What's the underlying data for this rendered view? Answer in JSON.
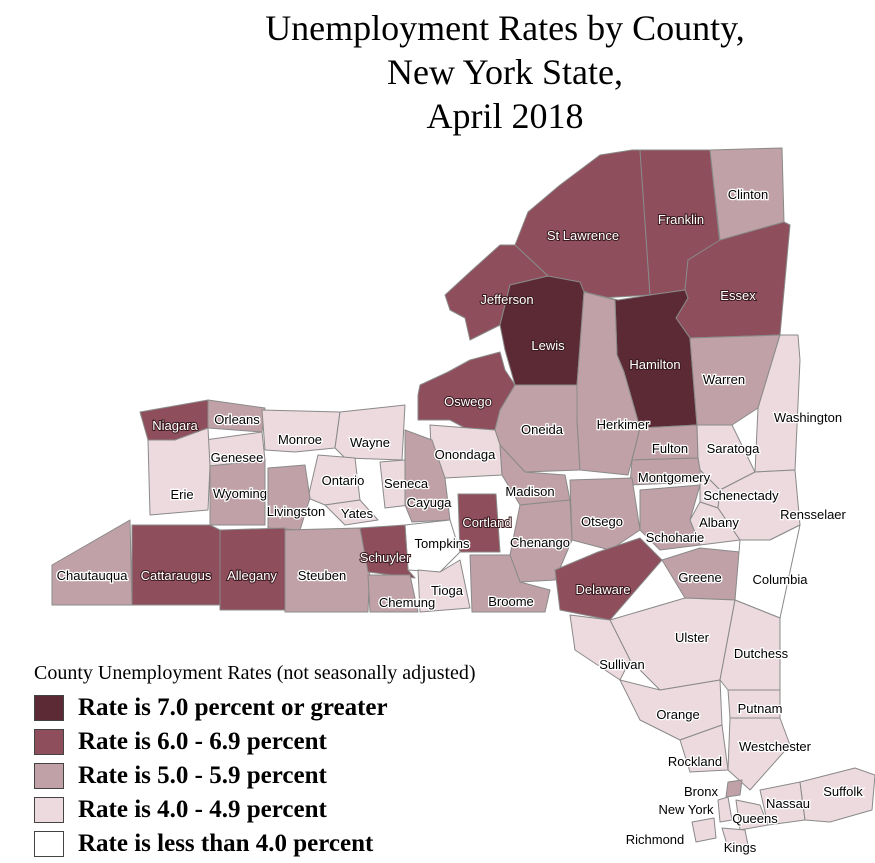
{
  "title": {
    "line1": "Unemployment Rates by County,",
    "line2": "New York State,",
    "line3": "April 2018"
  },
  "legend": {
    "title": "County Unemployment Rates (not seasonally adjusted)",
    "items": [
      {
        "label": "Rate is 7.0 percent or greater",
        "color": "#5c2a35"
      },
      {
        "label": "Rate is 6.0 - 6.9 percent",
        "color": "#8e4e5b"
      },
      {
        "label": "Rate is 5.0 - 5.9 percent",
        "color": "#c0a1a7"
      },
      {
        "label": "Rate is 4.0 - 4.9 percent",
        "color": "#ecdade"
      },
      {
        "label": "Rate is less than 4.0 percent",
        "color": "#ffffff"
      }
    ]
  },
  "counties": [
    {
      "name": "St Lawrence",
      "class": "6.0 - 6.9"
    },
    {
      "name": "Franklin",
      "class": "6.0 - 6.9"
    },
    {
      "name": "Clinton",
      "class": "5.0 - 5.9"
    },
    {
      "name": "Essex",
      "class": "6.0 - 6.9"
    },
    {
      "name": "Jefferson",
      "class": "6.0 - 6.9"
    },
    {
      "name": "Lewis",
      "class": "7.0+"
    },
    {
      "name": "Hamilton",
      "class": "7.0+"
    },
    {
      "name": "Warren",
      "class": "5.0 - 5.9"
    },
    {
      "name": "Washington",
      "class": "4.0 - 4.9"
    },
    {
      "name": "Oswego",
      "class": "6.0 - 6.9"
    },
    {
      "name": "Oneida",
      "class": "5.0 - 5.9"
    },
    {
      "name": "Herkimer",
      "class": "5.0 - 5.9"
    },
    {
      "name": "Fulton",
      "class": "5.0 - 5.9"
    },
    {
      "name": "Saratoga",
      "class": "4.0 - 4.9"
    },
    {
      "name": "Niagara",
      "class": "6.0 - 6.9"
    },
    {
      "name": "Orleans",
      "class": "5.0 - 5.9"
    },
    {
      "name": "Monroe",
      "class": "4.0 - 4.9"
    },
    {
      "name": "Wayne",
      "class": "4.0 - 4.9"
    },
    {
      "name": "Onondaga",
      "class": "4.0 - 4.9"
    },
    {
      "name": "Montgomery",
      "class": "5.0 - 5.9"
    },
    {
      "name": "Schenectady",
      "class": "4.0 - 4.9"
    },
    {
      "name": "Genesee",
      "class": "4.0 - 4.9"
    },
    {
      "name": "Ontario",
      "class": "4.0 - 4.9"
    },
    {
      "name": "Seneca",
      "class": "4.0 - 4.9"
    },
    {
      "name": "Madison",
      "class": "5.0 - 5.9"
    },
    {
      "name": "Erie",
      "class": "4.0 - 4.9"
    },
    {
      "name": "Wyoming",
      "class": "5.0 - 5.9"
    },
    {
      "name": "Livingston",
      "class": "5.0 - 5.9"
    },
    {
      "name": "Yates",
      "class": "4.0 - 4.9"
    },
    {
      "name": "Cayuga",
      "class": "5.0 - 5.9"
    },
    {
      "name": "Cortland",
      "class": "6.0 - 6.9"
    },
    {
      "name": "Otsego",
      "class": "5.0 - 5.9"
    },
    {
      "name": "Albany",
      "class": "4.0 - 4.9"
    },
    {
      "name": "Rensselaer",
      "class": "4.0 - 4.9"
    },
    {
      "name": "Schoharie",
      "class": "5.0 - 5.9"
    },
    {
      "name": "Tompkins",
      "class": "< 4.0"
    },
    {
      "name": "Chenango",
      "class": "5.0 - 5.9"
    },
    {
      "name": "Chautauqua",
      "class": "5.0 - 5.9"
    },
    {
      "name": "Cattaraugus",
      "class": "6.0 - 6.9"
    },
    {
      "name": "Allegany",
      "class": "6.0 - 6.9"
    },
    {
      "name": "Steuben",
      "class": "5.0 - 5.9"
    },
    {
      "name": "Schuyler",
      "class": "6.0 - 6.9"
    },
    {
      "name": "Chemung",
      "class": "5.0 - 5.9"
    },
    {
      "name": "Tioga",
      "class": "4.0 - 4.9"
    },
    {
      "name": "Broome",
      "class": "5.0 - 5.9"
    },
    {
      "name": "Delaware",
      "class": "6.0 - 6.9"
    },
    {
      "name": "Greene",
      "class": "5.0 - 5.9"
    },
    {
      "name": "Columbia",
      "class": "< 4.0"
    },
    {
      "name": "Ulster",
      "class": "4.0 - 4.9"
    },
    {
      "name": "Sullivan",
      "class": "4.0 - 4.9"
    },
    {
      "name": "Dutchess",
      "class": "4.0 - 4.9"
    },
    {
      "name": "Orange",
      "class": "4.0 - 4.9"
    },
    {
      "name": "Putnam",
      "class": "4.0 - 4.9"
    },
    {
      "name": "Rockland",
      "class": "4.0 - 4.9"
    },
    {
      "name": "Westchester",
      "class": "4.0 - 4.9"
    },
    {
      "name": "Bronx",
      "class": "5.0 - 5.9"
    },
    {
      "name": "New York",
      "class": "4.0 - 4.9"
    },
    {
      "name": "Queens",
      "class": "4.0 - 4.9"
    },
    {
      "name": "Kings",
      "class": "4.0 - 4.9"
    },
    {
      "name": "Richmond",
      "class": "4.0 - 4.9"
    },
    {
      "name": "Nassau",
      "class": "4.0 - 4.9"
    },
    {
      "name": "Suffolk",
      "class": "4.0 - 4.9"
    }
  ]
}
